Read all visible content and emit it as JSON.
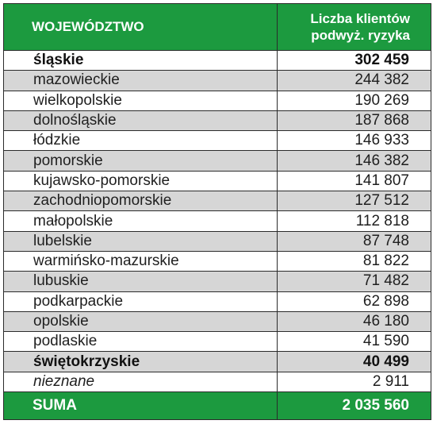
{
  "header": {
    "col1": "WOJEWÓDZTWO",
    "col2_line1": "Liczba klientów",
    "col2_line2": "podwyż. ryzyka"
  },
  "rows": [
    {
      "name": "śląskie",
      "value": "302 459"
    },
    {
      "name": "mazowieckie",
      "value": "244 382"
    },
    {
      "name": "wielkopolskie",
      "value": "190 269"
    },
    {
      "name": "dolnośląskie",
      "value": "187 868"
    },
    {
      "name": "łódzkie",
      "value": "146 933"
    },
    {
      "name": "pomorskie",
      "value": "146 382"
    },
    {
      "name": "kujawsko-pomorskie",
      "value": "141 807"
    },
    {
      "name": "zachodniopomorskie",
      "value": "127 512"
    },
    {
      "name": "małopolskie",
      "value": "112 818"
    },
    {
      "name": "lubelskie",
      "value": "87 748"
    },
    {
      "name": "warmińsko-mazurskie",
      "value": "81 822"
    },
    {
      "name": "lubuskie",
      "value": "71 482"
    },
    {
      "name": "podkarpackie",
      "value": "62 898"
    },
    {
      "name": "opolskie",
      "value": "46 180"
    },
    {
      "name": "podlaskie",
      "value": "41 590"
    },
    {
      "name": "świętokrzyskie",
      "value": "40 499"
    },
    {
      "name": "nieznane",
      "value": "2 911"
    }
  ],
  "footer": {
    "label": "SUMA",
    "value": "2 035 560"
  },
  "colors": {
    "header_green": "#1c9a3f",
    "row_stripe": "#d6d6d6"
  }
}
